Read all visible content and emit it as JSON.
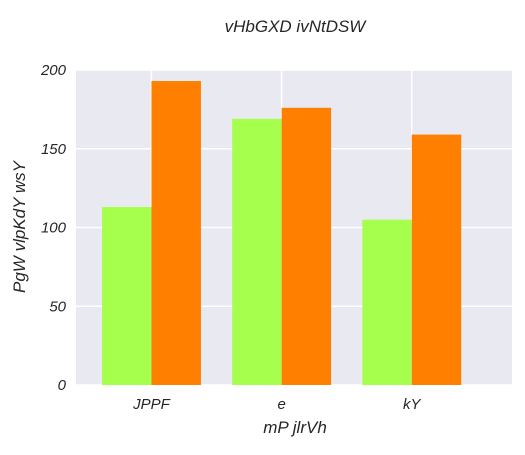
{
  "chart_data": {
    "type": "bar",
    "title": "vHbGXD ivNtDSW",
    "xlabel": "mP jlrVh",
    "ylabel": "PgW vlpKdY wsY",
    "categories": [
      "JPPF",
      "e",
      "kY"
    ],
    "series": [
      {
        "values": [
          113,
          169,
          105
        ],
        "color": "#a6ff4d"
      },
      {
        "values": [
          193,
          176,
          159
        ],
        "color": "#ff7f00"
      }
    ],
    "ylim": [
      0,
      200
    ],
    "yticks": [
      0,
      50,
      100,
      150,
      200
    ],
    "grid": true,
    "legend": "none",
    "background_color": "#e9e9f1",
    "grid_color": "#ffffff"
  }
}
